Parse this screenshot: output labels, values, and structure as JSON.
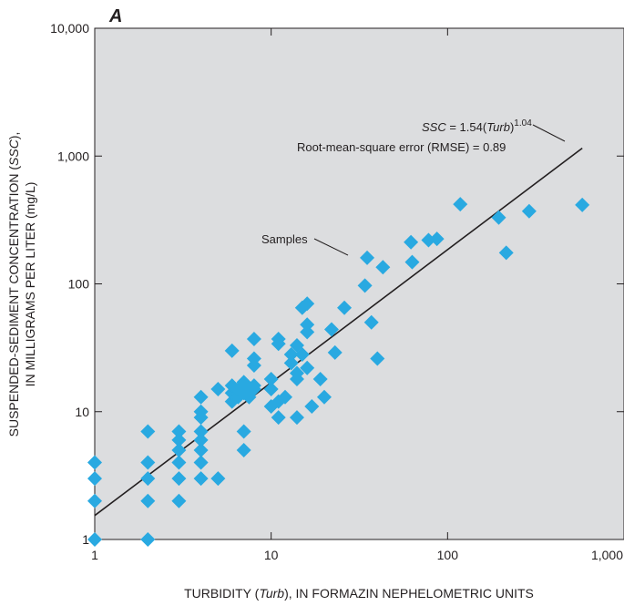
{
  "chart_data": {
    "type": "scatter",
    "panel_label": "A",
    "x_scale": "log",
    "y_scale": "log",
    "xlim": [
      1,
      1000
    ],
    "ylim": [
      1,
      10000
    ],
    "x_ticks": [
      {
        "value": 1,
        "label": "1"
      },
      {
        "value": 10,
        "label": "10"
      },
      {
        "value": 100,
        "label": "100"
      },
      {
        "value": 1000,
        "label": "1,000"
      }
    ],
    "y_ticks": [
      {
        "value": 1,
        "label": "1"
      },
      {
        "value": 10,
        "label": "10"
      },
      {
        "value": 100,
        "label": "100"
      },
      {
        "value": 1000,
        "label": "1,000"
      },
      {
        "value": 10000,
        "label": "10,000"
      }
    ],
    "xlabel": {
      "pre": "TURBIDITY (",
      "italic": "Turb",
      "post": "), IN FORMAZIN NEPHELOMETRIC UNITS"
    },
    "ylabel": {
      "line1_pre": "SUSPENDED-SEDIMENT CONCENTRATION (",
      "line1_italic": "SSC",
      "line1_post": "),",
      "line2": "IN MILLIGRAMS PER LITER (mg/L)"
    },
    "grid": false,
    "background": "#dcdddf",
    "marker_color": "#29a9e1",
    "series_label": "Samples",
    "regression": {
      "intercept": 1.54,
      "exponent": 1.04,
      "x_range": [
        1,
        580
      ],
      "color": "#231f20",
      "equation_lhs": "SSC",
      "equation_mid": " = 1.54(",
      "equation_var": "Turb",
      "equation_close": ")",
      "equation_exp": "1.04",
      "rmse_text": "Root-mean-square error (RMSE) = 0.89"
    },
    "points": [
      {
        "x": 1,
        "y": 1
      },
      {
        "x": 1,
        "y": 2
      },
      {
        "x": 1,
        "y": 3
      },
      {
        "x": 1,
        "y": 4
      },
      {
        "x": 2,
        "y": 1
      },
      {
        "x": 2,
        "y": 2
      },
      {
        "x": 2,
        "y": 3
      },
      {
        "x": 2,
        "y": 4
      },
      {
        "x": 2,
        "y": 7
      },
      {
        "x": 3,
        "y": 2
      },
      {
        "x": 3,
        "y": 3
      },
      {
        "x": 3,
        "y": 4
      },
      {
        "x": 3,
        "y": 5
      },
      {
        "x": 3,
        "y": 6
      },
      {
        "x": 3,
        "y": 7
      },
      {
        "x": 4,
        "y": 3
      },
      {
        "x": 4,
        "y": 4
      },
      {
        "x": 4,
        "y": 5
      },
      {
        "x": 4,
        "y": 6
      },
      {
        "x": 4,
        "y": 7
      },
      {
        "x": 4,
        "y": 9
      },
      {
        "x": 4,
        "y": 10
      },
      {
        "x": 4,
        "y": 13
      },
      {
        "x": 5,
        "y": 3
      },
      {
        "x": 5,
        "y": 15
      },
      {
        "x": 6,
        "y": 12
      },
      {
        "x": 6,
        "y": 14
      },
      {
        "x": 6,
        "y": 16
      },
      {
        "x": 6,
        "y": 30
      },
      {
        "x": 6.5,
        "y": 13
      },
      {
        "x": 6.5,
        "y": 15
      },
      {
        "x": 7,
        "y": 5
      },
      {
        "x": 7,
        "y": 7
      },
      {
        "x": 7,
        "y": 14
      },
      {
        "x": 7,
        "y": 16
      },
      {
        "x": 7,
        "y": 17
      },
      {
        "x": 7.5,
        "y": 13
      },
      {
        "x": 7.5,
        "y": 15
      },
      {
        "x": 8,
        "y": 15
      },
      {
        "x": 8,
        "y": 16
      },
      {
        "x": 8,
        "y": 23
      },
      {
        "x": 8,
        "y": 26
      },
      {
        "x": 8,
        "y": 37
      },
      {
        "x": 10,
        "y": 11
      },
      {
        "x": 10,
        "y": 15
      },
      {
        "x": 10,
        "y": 18
      },
      {
        "x": 11,
        "y": 9
      },
      {
        "x": 11,
        "y": 12
      },
      {
        "x": 11,
        "y": 34
      },
      {
        "x": 11,
        "y": 37
      },
      {
        "x": 12,
        "y": 13
      },
      {
        "x": 13,
        "y": 24
      },
      {
        "x": 13,
        "y": 28
      },
      {
        "x": 14,
        "y": 9
      },
      {
        "x": 14,
        "y": 18
      },
      {
        "x": 14,
        "y": 20
      },
      {
        "x": 14,
        "y": 33
      },
      {
        "x": 15,
        "y": 28
      },
      {
        "x": 15,
        "y": 65
      },
      {
        "x": 16,
        "y": 22
      },
      {
        "x": 16,
        "y": 42
      },
      {
        "x": 16,
        "y": 48
      },
      {
        "x": 16,
        "y": 70
      },
      {
        "x": 17,
        "y": 11
      },
      {
        "x": 19,
        "y": 18
      },
      {
        "x": 20,
        "y": 13
      },
      {
        "x": 22,
        "y": 44
      },
      {
        "x": 23,
        "y": 29
      },
      {
        "x": 26,
        "y": 65
      },
      {
        "x": 34,
        "y": 97
      },
      {
        "x": 35,
        "y": 160
      },
      {
        "x": 37,
        "y": 50
      },
      {
        "x": 40,
        "y": 26
      },
      {
        "x": 43,
        "y": 135
      },
      {
        "x": 62,
        "y": 212
      },
      {
        "x": 63,
        "y": 148
      },
      {
        "x": 78,
        "y": 220
      },
      {
        "x": 87,
        "y": 225
      },
      {
        "x": 118,
        "y": 420
      },
      {
        "x": 195,
        "y": 330
      },
      {
        "x": 215,
        "y": 175
      },
      {
        "x": 290,
        "y": 370
      },
      {
        "x": 580,
        "y": 415
      }
    ]
  }
}
